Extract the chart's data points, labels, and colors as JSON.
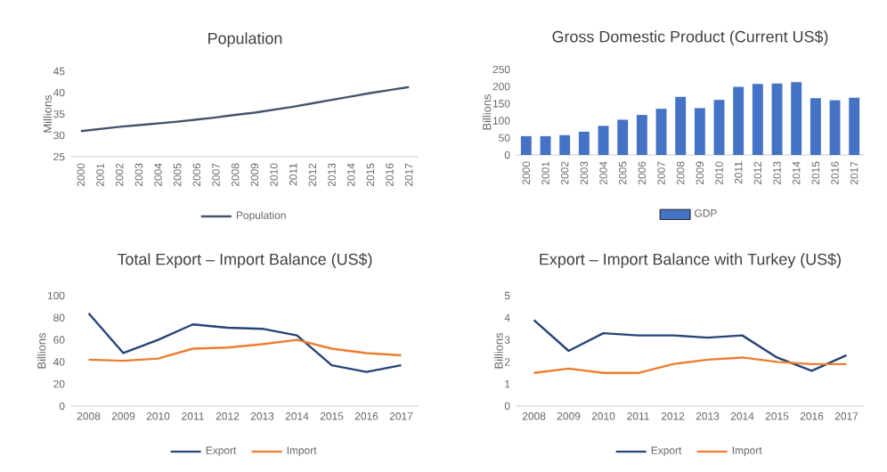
{
  "chart_data": [
    {
      "type": "line",
      "title": "Population",
      "ylabel": "Millions",
      "categories": [
        "2000",
        "2001",
        "2002",
        "2003",
        "2004",
        "2005",
        "2006",
        "2007",
        "2008",
        "2009",
        "2010",
        "2011",
        "2012",
        "2013",
        "2014",
        "2015",
        "2016",
        "2017"
      ],
      "ylim": [
        25,
        45
      ],
      "yticks": [
        25,
        30,
        35,
        40,
        45
      ],
      "legend": "bottom",
      "series": [
        {
          "name": "Population",
          "color": "#44546a",
          "values": [
            31.0,
            31.5,
            32.0,
            32.4,
            32.8,
            33.2,
            33.7,
            34.2,
            34.8,
            35.3,
            36.0,
            36.7,
            37.5,
            38.3,
            39.1,
            39.9,
            40.6,
            41.3
          ]
        }
      ]
    },
    {
      "type": "bar",
      "title": "Gross Domestic Product (Current US$)",
      "ylabel": "Billions",
      "categories": [
        "2000",
        "2001",
        "2002",
        "2003",
        "2004",
        "2005",
        "2006",
        "2007",
        "2008",
        "2009",
        "2010",
        "2011",
        "2012",
        "2013",
        "2014",
        "2015",
        "2016",
        "2017"
      ],
      "ylim": [
        0,
        250
      ],
      "yticks": [
        0,
        50,
        100,
        150,
        200,
        250
      ],
      "legend": "bottom",
      "series": [
        {
          "name": "GDP",
          "color": "#4472c4",
          "values": [
            55,
            55,
            58,
            68,
            85,
            103,
            117,
            135,
            170,
            137,
            161,
            199,
            208,
            209,
            213,
            166,
            160,
            167
          ]
        }
      ]
    },
    {
      "type": "line",
      "title": "Total Export – Import Balance (US$)",
      "ylabel": "Billions",
      "categories": [
        "2008",
        "2009",
        "2010",
        "2011",
        "2012",
        "2013",
        "2014",
        "2015",
        "2016",
        "2017"
      ],
      "ylim": [
        0,
        100
      ],
      "yticks": [
        0,
        20,
        40,
        60,
        80,
        100
      ],
      "legend": "bottom",
      "series": [
        {
          "name": "Export",
          "color": "#264478",
          "values": [
            84,
            48,
            60,
            74,
            71,
            70,
            64,
            37,
            31,
            37
          ]
        },
        {
          "name": "Import",
          "color": "#ed7d31",
          "values": [
            42,
            41,
            43,
            52,
            53,
            56,
            60,
            52,
            48,
            46
          ]
        }
      ]
    },
    {
      "type": "line",
      "title": "Export – Import Balance with Turkey (US$)",
      "ylabel": "Billions",
      "categories": [
        "2008",
        "2009",
        "2010",
        "2011",
        "2012",
        "2013",
        "2014",
        "2015",
        "2016",
        "2017"
      ],
      "ylim": [
        0,
        5
      ],
      "yticks": [
        0,
        1,
        2,
        3,
        4,
        5
      ],
      "legend": "bottom",
      "series": [
        {
          "name": "Export",
          "color": "#264478",
          "values": [
            3.9,
            2.5,
            3.3,
            3.2,
            3.2,
            3.1,
            3.2,
            2.2,
            1.6,
            2.3
          ]
        },
        {
          "name": "Import",
          "color": "#ed7d31",
          "values": [
            1.5,
            1.7,
            1.5,
            1.5,
            1.9,
            2.1,
            2.2,
            2.0,
            1.9,
            1.9
          ]
        }
      ]
    }
  ]
}
